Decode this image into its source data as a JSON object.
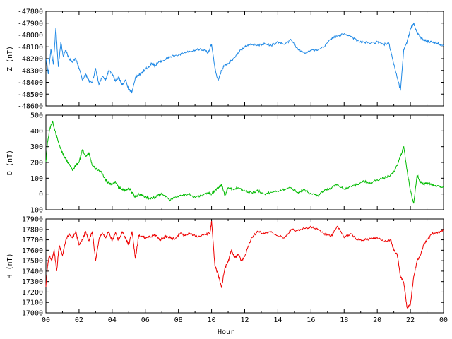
{
  "chart_data": [
    {
      "type": "line",
      "ylabel": "Z (nT)",
      "ylim": [
        -48600,
        -47800
      ],
      "yticks": [
        -47800,
        -47900,
        -48000,
        -48100,
        -48200,
        -48300,
        -48400,
        -48500,
        -48600
      ],
      "xlim": [
        0,
        24
      ],
      "color": "#1e88e5",
      "series": [
        {
          "x": [
            0.0,
            0.15,
            0.3,
            0.45,
            0.6,
            0.75,
            0.9,
            1.05,
            1.2,
            1.4,
            1.6,
            1.8,
            2.0,
            2.2,
            2.4,
            2.6,
            2.8,
            3.0,
            3.2,
            3.4,
            3.6,
            3.8,
            4.0,
            4.2,
            4.4,
            4.6,
            4.8,
            5.0,
            5.2,
            5.4,
            5.6,
            5.8,
            6.0,
            6.2,
            6.4,
            6.6,
            6.8,
            7.0,
            7.3,
            7.6,
            8.0,
            8.4,
            8.8,
            9.2,
            9.6,
            9.8,
            10.0,
            10.2,
            10.4,
            10.6,
            10.8,
            11.0,
            11.3,
            11.6,
            12.0,
            12.4,
            12.8,
            13.2,
            13.6,
            14.0,
            14.4,
            14.8,
            15.2,
            15.6,
            16.0,
            16.4,
            16.8,
            17.2,
            17.6,
            18.0,
            18.4,
            18.8,
            19.2,
            19.6,
            20.0,
            20.4,
            20.7,
            21.0,
            21.2,
            21.4,
            21.6,
            21.8,
            22.0,
            22.2,
            22.4,
            22.6,
            22.8,
            23.0,
            23.3,
            23.6,
            24.0
          ],
          "values": [
            -48200,
            -48330,
            -48120,
            -48250,
            -47940,
            -48270,
            -48060,
            -48180,
            -48130,
            -48200,
            -48230,
            -48200,
            -48280,
            -48380,
            -48330,
            -48390,
            -48400,
            -48280,
            -48420,
            -48350,
            -48380,
            -48300,
            -48330,
            -48390,
            -48360,
            -48420,
            -48380,
            -48460,
            -48480,
            -48360,
            -48340,
            -48320,
            -48290,
            -48270,
            -48240,
            -48260,
            -48230,
            -48220,
            -48200,
            -48180,
            -48170,
            -48150,
            -48140,
            -48120,
            -48130,
            -48150,
            -48080,
            -48280,
            -48390,
            -48300,
            -48250,
            -48240,
            -48200,
            -48150,
            -48100,
            -48080,
            -48090,
            -48070,
            -48090,
            -48060,
            -48080,
            -48040,
            -48120,
            -48150,
            -48130,
            -48130,
            -48100,
            -48030,
            -48010,
            -47990,
            -48010,
            -48050,
            -48060,
            -48070,
            -48060,
            -48080,
            -48070,
            -48250,
            -48360,
            -48470,
            -48120,
            -48060,
            -47950,
            -47900,
            -47980,
            -48020,
            -48040,
            -48050,
            -48060,
            -48070,
            -48090
          ]
        }
      ]
    },
    {
      "type": "line",
      "ylabel": "D (nT)",
      "ylim": [
        -100,
        500
      ],
      "yticks": [
        500,
        400,
        300,
        200,
        100,
        0,
        -100
      ],
      "xlim": [
        0,
        24
      ],
      "color": "#00bb00",
      "series": [
        {
          "x": [
            0.0,
            0.1,
            0.25,
            0.4,
            0.55,
            0.7,
            0.85,
            1.0,
            1.2,
            1.4,
            1.6,
            1.8,
            2.0,
            2.2,
            2.4,
            2.6,
            2.8,
            3.0,
            3.2,
            3.4,
            3.6,
            3.8,
            4.0,
            4.2,
            4.4,
            4.6,
            4.8,
            5.0,
            5.2,
            5.4,
            5.6,
            5.8,
            6.0,
            6.3,
            6.6,
            6.9,
            7.2,
            7.5,
            7.8,
            8.2,
            8.6,
            9.0,
            9.4,
            9.8,
            10.0,
            10.2,
            10.4,
            10.6,
            10.8,
            11.0,
            11.3,
            11.6,
            12.0,
            12.4,
            12.8,
            13.2,
            13.6,
            14.0,
            14.4,
            14.8,
            15.2,
            15.6,
            16.0,
            16.4,
            16.8,
            17.2,
            17.6,
            18.0,
            18.4,
            18.8,
            19.2,
            19.6,
            20.0,
            20.4,
            20.8,
            21.0,
            21.2,
            21.4,
            21.6,
            21.8,
            22.0,
            22.2,
            22.4,
            22.6,
            22.8,
            23.0,
            23.3,
            23.6,
            24.0
          ],
          "values": [
            200,
            330,
            420,
            460,
            400,
            350,
            300,
            260,
            220,
            190,
            150,
            180,
            200,
            280,
            240,
            260,
            180,
            160,
            150,
            130,
            90,
            70,
            60,
            80,
            40,
            30,
            20,
            40,
            10,
            -20,
            0,
            -10,
            -20,
            -30,
            -20,
            0,
            -10,
            -40,
            -20,
            -10,
            0,
            -20,
            -10,
            10,
            0,
            20,
            40,
            60,
            -10,
            40,
            30,
            40,
            20,
            10,
            20,
            0,
            10,
            20,
            30,
            40,
            10,
            30,
            0,
            -10,
            20,
            40,
            60,
            30,
            50,
            60,
            80,
            70,
            90,
            100,
            120,
            140,
            180,
            240,
            300,
            150,
            20,
            -60,
            120,
            80,
            60,
            70,
            60,
            50,
            45
          ]
        }
      ]
    },
    {
      "type": "line",
      "ylabel": "H (nT)",
      "ylim": [
        17000,
        17900
      ],
      "yticks": [
        17900,
        17800,
        17700,
        17600,
        17500,
        17400,
        17300,
        17200,
        17100,
        17000
      ],
      "xlim": [
        0,
        24
      ],
      "xticks": [
        "00",
        "02",
        "04",
        "06",
        "08",
        "10",
        "12",
        "14",
        "16",
        "18",
        "20",
        "22",
        "00"
      ],
      "xlabel": "Hour",
      "color": "#ee0000",
      "series": [
        {
          "x": [
            0.0,
            0.1,
            0.2,
            0.35,
            0.5,
            0.65,
            0.8,
            1.0,
            1.2,
            1.4,
            1.6,
            1.8,
            2.0,
            2.2,
            2.4,
            2.6,
            2.8,
            3.0,
            3.2,
            3.4,
            3.6,
            3.8,
            4.0,
            4.2,
            4.4,
            4.6,
            4.8,
            5.0,
            5.2,
            5.4,
            5.6,
            5.8,
            6.0,
            6.3,
            6.6,
            6.9,
            7.2,
            7.5,
            7.8,
            8.1,
            8.4,
            8.7,
            9.0,
            9.3,
            9.6,
            9.9,
            10.0,
            10.2,
            10.4,
            10.6,
            10.8,
            11.0,
            11.2,
            11.4,
            11.6,
            11.8,
            12.0,
            12.4,
            12.8,
            13.2,
            13.6,
            14.0,
            14.4,
            14.8,
            15.2,
            15.6,
            16.0,
            16.4,
            16.8,
            17.2,
            17.6,
            18.0,
            18.4,
            18.8,
            19.2,
            19.6,
            20.0,
            20.4,
            20.8,
            21.0,
            21.2,
            21.4,
            21.6,
            21.8,
            22.0,
            22.2,
            22.4,
            22.6,
            22.8,
            23.0,
            23.3,
            23.6,
            24.0
          ],
          "values": [
            17250,
            17450,
            17550,
            17500,
            17600,
            17400,
            17650,
            17550,
            17700,
            17750,
            17720,
            17780,
            17650,
            17700,
            17780,
            17690,
            17780,
            17500,
            17700,
            17770,
            17720,
            17780,
            17690,
            17770,
            17690,
            17780,
            17720,
            17650,
            17780,
            17520,
            17740,
            17730,
            17720,
            17730,
            17750,
            17700,
            17730,
            17720,
            17710,
            17760,
            17740,
            17760,
            17740,
            17730,
            17750,
            17760,
            17880,
            17450,
            17370,
            17240,
            17430,
            17490,
            17600,
            17530,
            17560,
            17500,
            17540,
            17720,
            17780,
            17760,
            17780,
            17740,
            17720,
            17800,
            17790,
            17810,
            17820,
            17800,
            17760,
            17730,
            17830,
            17720,
            17760,
            17700,
            17700,
            17710,
            17720,
            17680,
            17700,
            17600,
            17560,
            17350,
            17290,
            17050,
            17080,
            17350,
            17500,
            17550,
            17650,
            17700,
            17760,
            17770,
            17790
          ]
        }
      ]
    }
  ]
}
